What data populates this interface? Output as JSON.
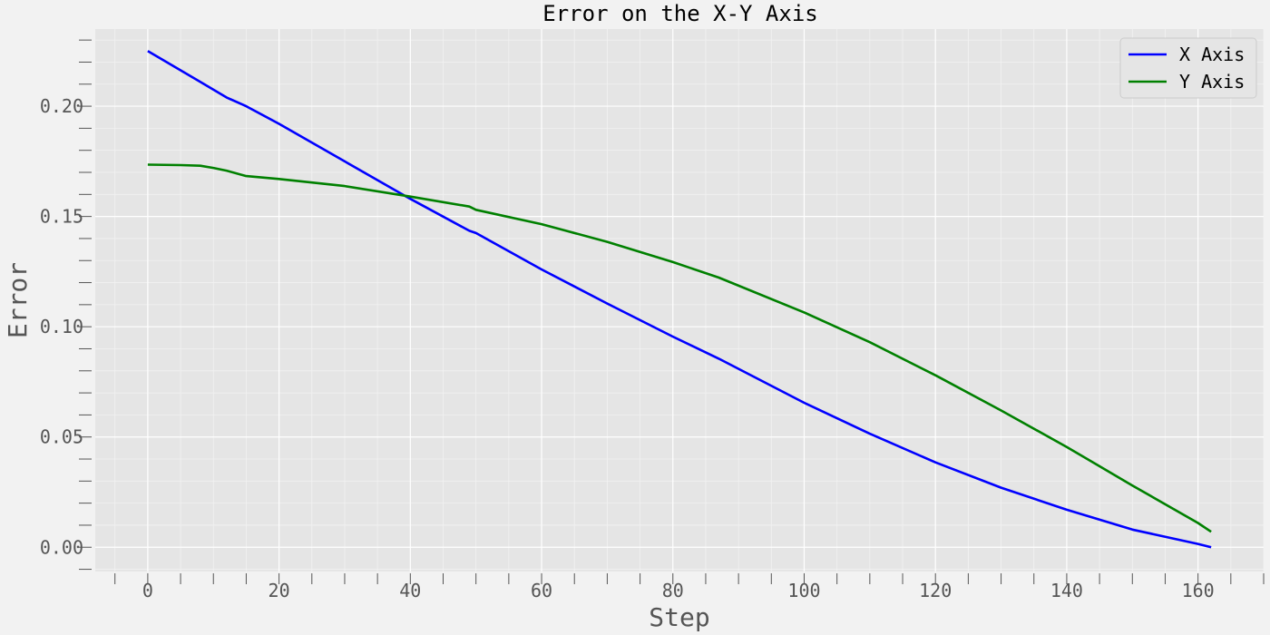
{
  "chart_data": {
    "type": "line",
    "title": "Error on the X-Y Axis",
    "xlabel": "Step",
    "ylabel": "Error",
    "xlim": [
      -8,
      170
    ],
    "ylim": [
      -0.011,
      0.235
    ],
    "x_ticks": [
      0,
      20,
      40,
      60,
      80,
      100,
      120,
      140,
      160
    ],
    "x_tick_labels": [
      "0",
      "20",
      "40",
      "60",
      "80",
      "100",
      "120",
      "140",
      "160"
    ],
    "y_ticks": [
      0.0,
      0.05,
      0.1,
      0.15,
      0.2
    ],
    "y_tick_labels": [
      "0.00",
      "0.05",
      "0.10",
      "0.15",
      "0.20"
    ],
    "grid": true,
    "legend_position": "top-right",
    "series": [
      {
        "name": "X Axis",
        "color": "#0000ff",
        "x": [
          0,
          8,
          12,
          15,
          20,
          30,
          40,
          49,
          50,
          60,
          70,
          80,
          87,
          100,
          110,
          120,
          130,
          140,
          150,
          160,
          162
        ],
        "y": [
          0.225,
          0.211,
          0.204,
          0.2,
          0.192,
          0.175,
          0.158,
          0.1435,
          0.1425,
          0.126,
          0.1105,
          0.0955,
          0.0855,
          0.0655,
          0.0515,
          0.0385,
          0.027,
          0.017,
          0.008,
          0.0015,
          0.0
        ]
      },
      {
        "name": "Y Axis",
        "color": "#008000",
        "x": [
          0,
          5,
          8,
          10,
          12,
          15,
          20,
          30,
          40,
          49,
          50,
          60,
          70,
          80,
          87,
          100,
          110,
          120,
          130,
          140,
          150,
          160,
          162
        ],
        "y": [
          0.1735,
          0.1733,
          0.173,
          0.172,
          0.1708,
          0.1683,
          0.167,
          0.1638,
          0.159,
          0.1545,
          0.153,
          0.1465,
          0.1385,
          0.1293,
          0.1223,
          0.1065,
          0.093,
          0.078,
          0.062,
          0.0455,
          0.028,
          0.011,
          0.007
        ]
      }
    ]
  }
}
